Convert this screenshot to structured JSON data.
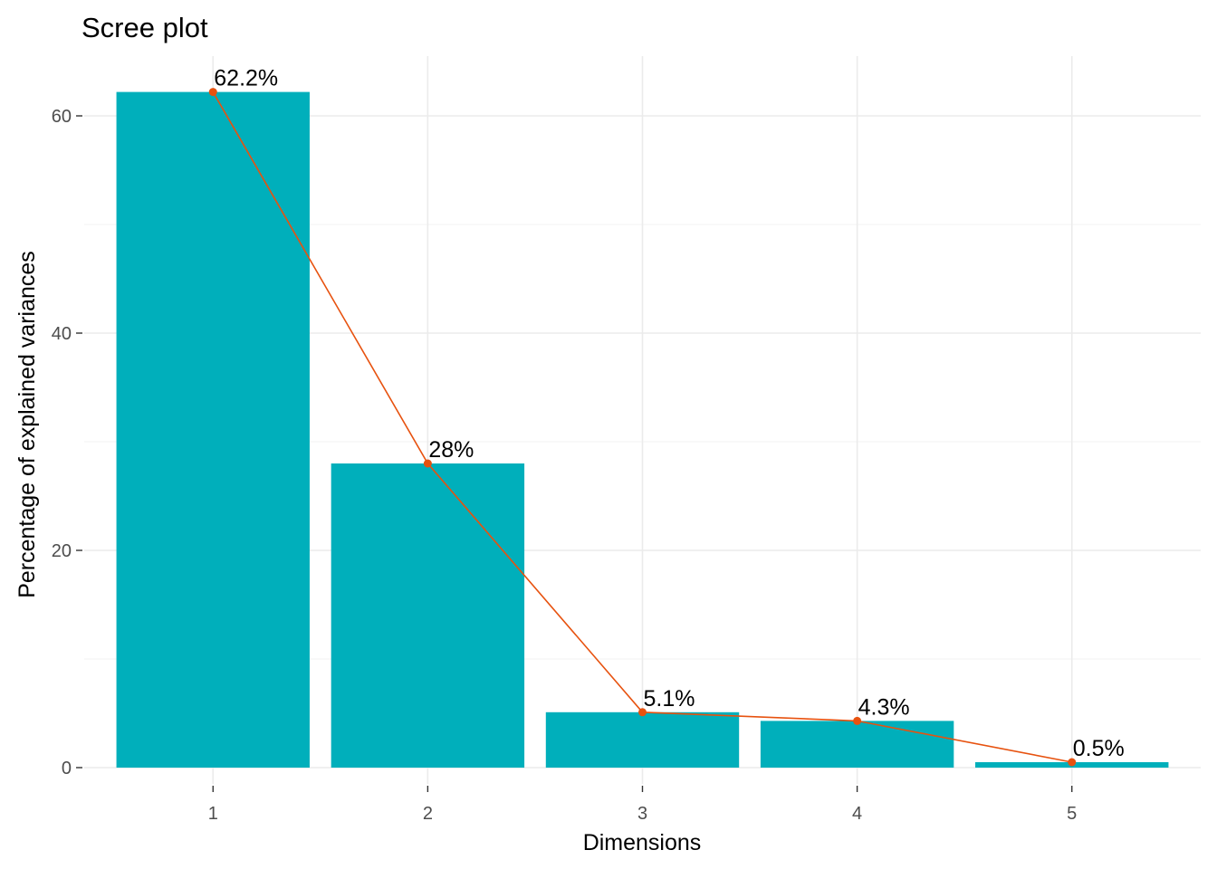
{
  "chart_data": {
    "type": "bar",
    "title": "Scree plot",
    "xlabel": "Dimensions",
    "ylabel": "Percentage of explained variances",
    "categories": [
      "1",
      "2",
      "3",
      "4",
      "5"
    ],
    "values": [
      62.2,
      28.0,
      5.1,
      4.3,
      0.5
    ],
    "data_labels": [
      "62.2%",
      "28%",
      "5.1%",
      "4.3%",
      "0.5%"
    ],
    "yticks": [
      0,
      20,
      40,
      60
    ],
    "ylim": [
      -1.5,
      65.5
    ],
    "grid": true,
    "legend": "none",
    "overlay": "line-with-points",
    "colors": {
      "bar": "#00AFBB",
      "line": "#E7520F",
      "point": "#E7520F"
    }
  }
}
